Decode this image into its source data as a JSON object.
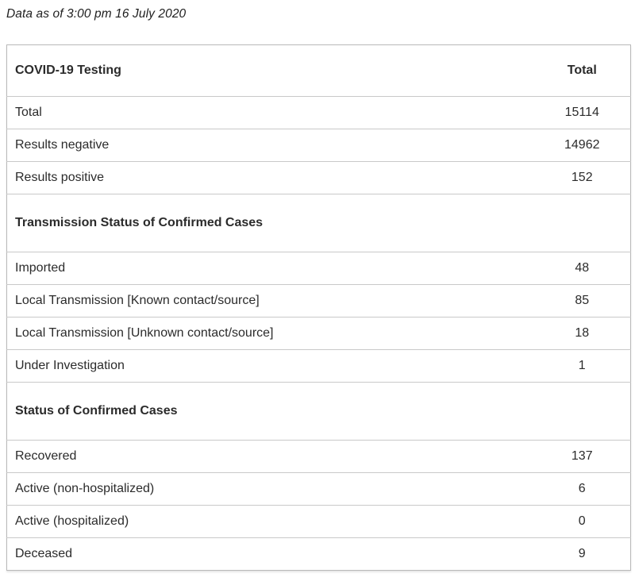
{
  "page": {
    "subtitle": "Data as of 3:00 pm 16 July 2020"
  },
  "table": {
    "header": {
      "label": "COVID-19 Testing",
      "value_label": "Total"
    },
    "sections": [
      {
        "title": null,
        "rows": [
          {
            "label": "Total",
            "value": "15114"
          },
          {
            "label": "Results negative",
            "value": "14962"
          },
          {
            "label": "Results positive",
            "value": "152"
          }
        ]
      },
      {
        "title": "Transmission Status of Confirmed Cases",
        "rows": [
          {
            "label": "Imported",
            "value": "48"
          },
          {
            "label": "Local Transmission [Known contact/source]",
            "value": "85"
          },
          {
            "label": "Local Transmission [Unknown contact/source]",
            "value": "18"
          },
          {
            "label": "Under Investigation",
            "value": "1"
          }
        ]
      },
      {
        "title": "Status of Confirmed Cases",
        "rows": [
          {
            "label": "Recovered",
            "value": "137"
          },
          {
            "label": "Active (non-hospitalized)",
            "value": "6"
          },
          {
            "label": "Active (hospitalized)",
            "value": "0"
          },
          {
            "label": "Deceased",
            "value": "9"
          }
        ]
      }
    ]
  },
  "colors": {
    "text-color": "#2b2b2b",
    "border-outer": "#b9b9b9",
    "border-inner": "#c9c9c9",
    "bg": "#ffffff"
  }
}
